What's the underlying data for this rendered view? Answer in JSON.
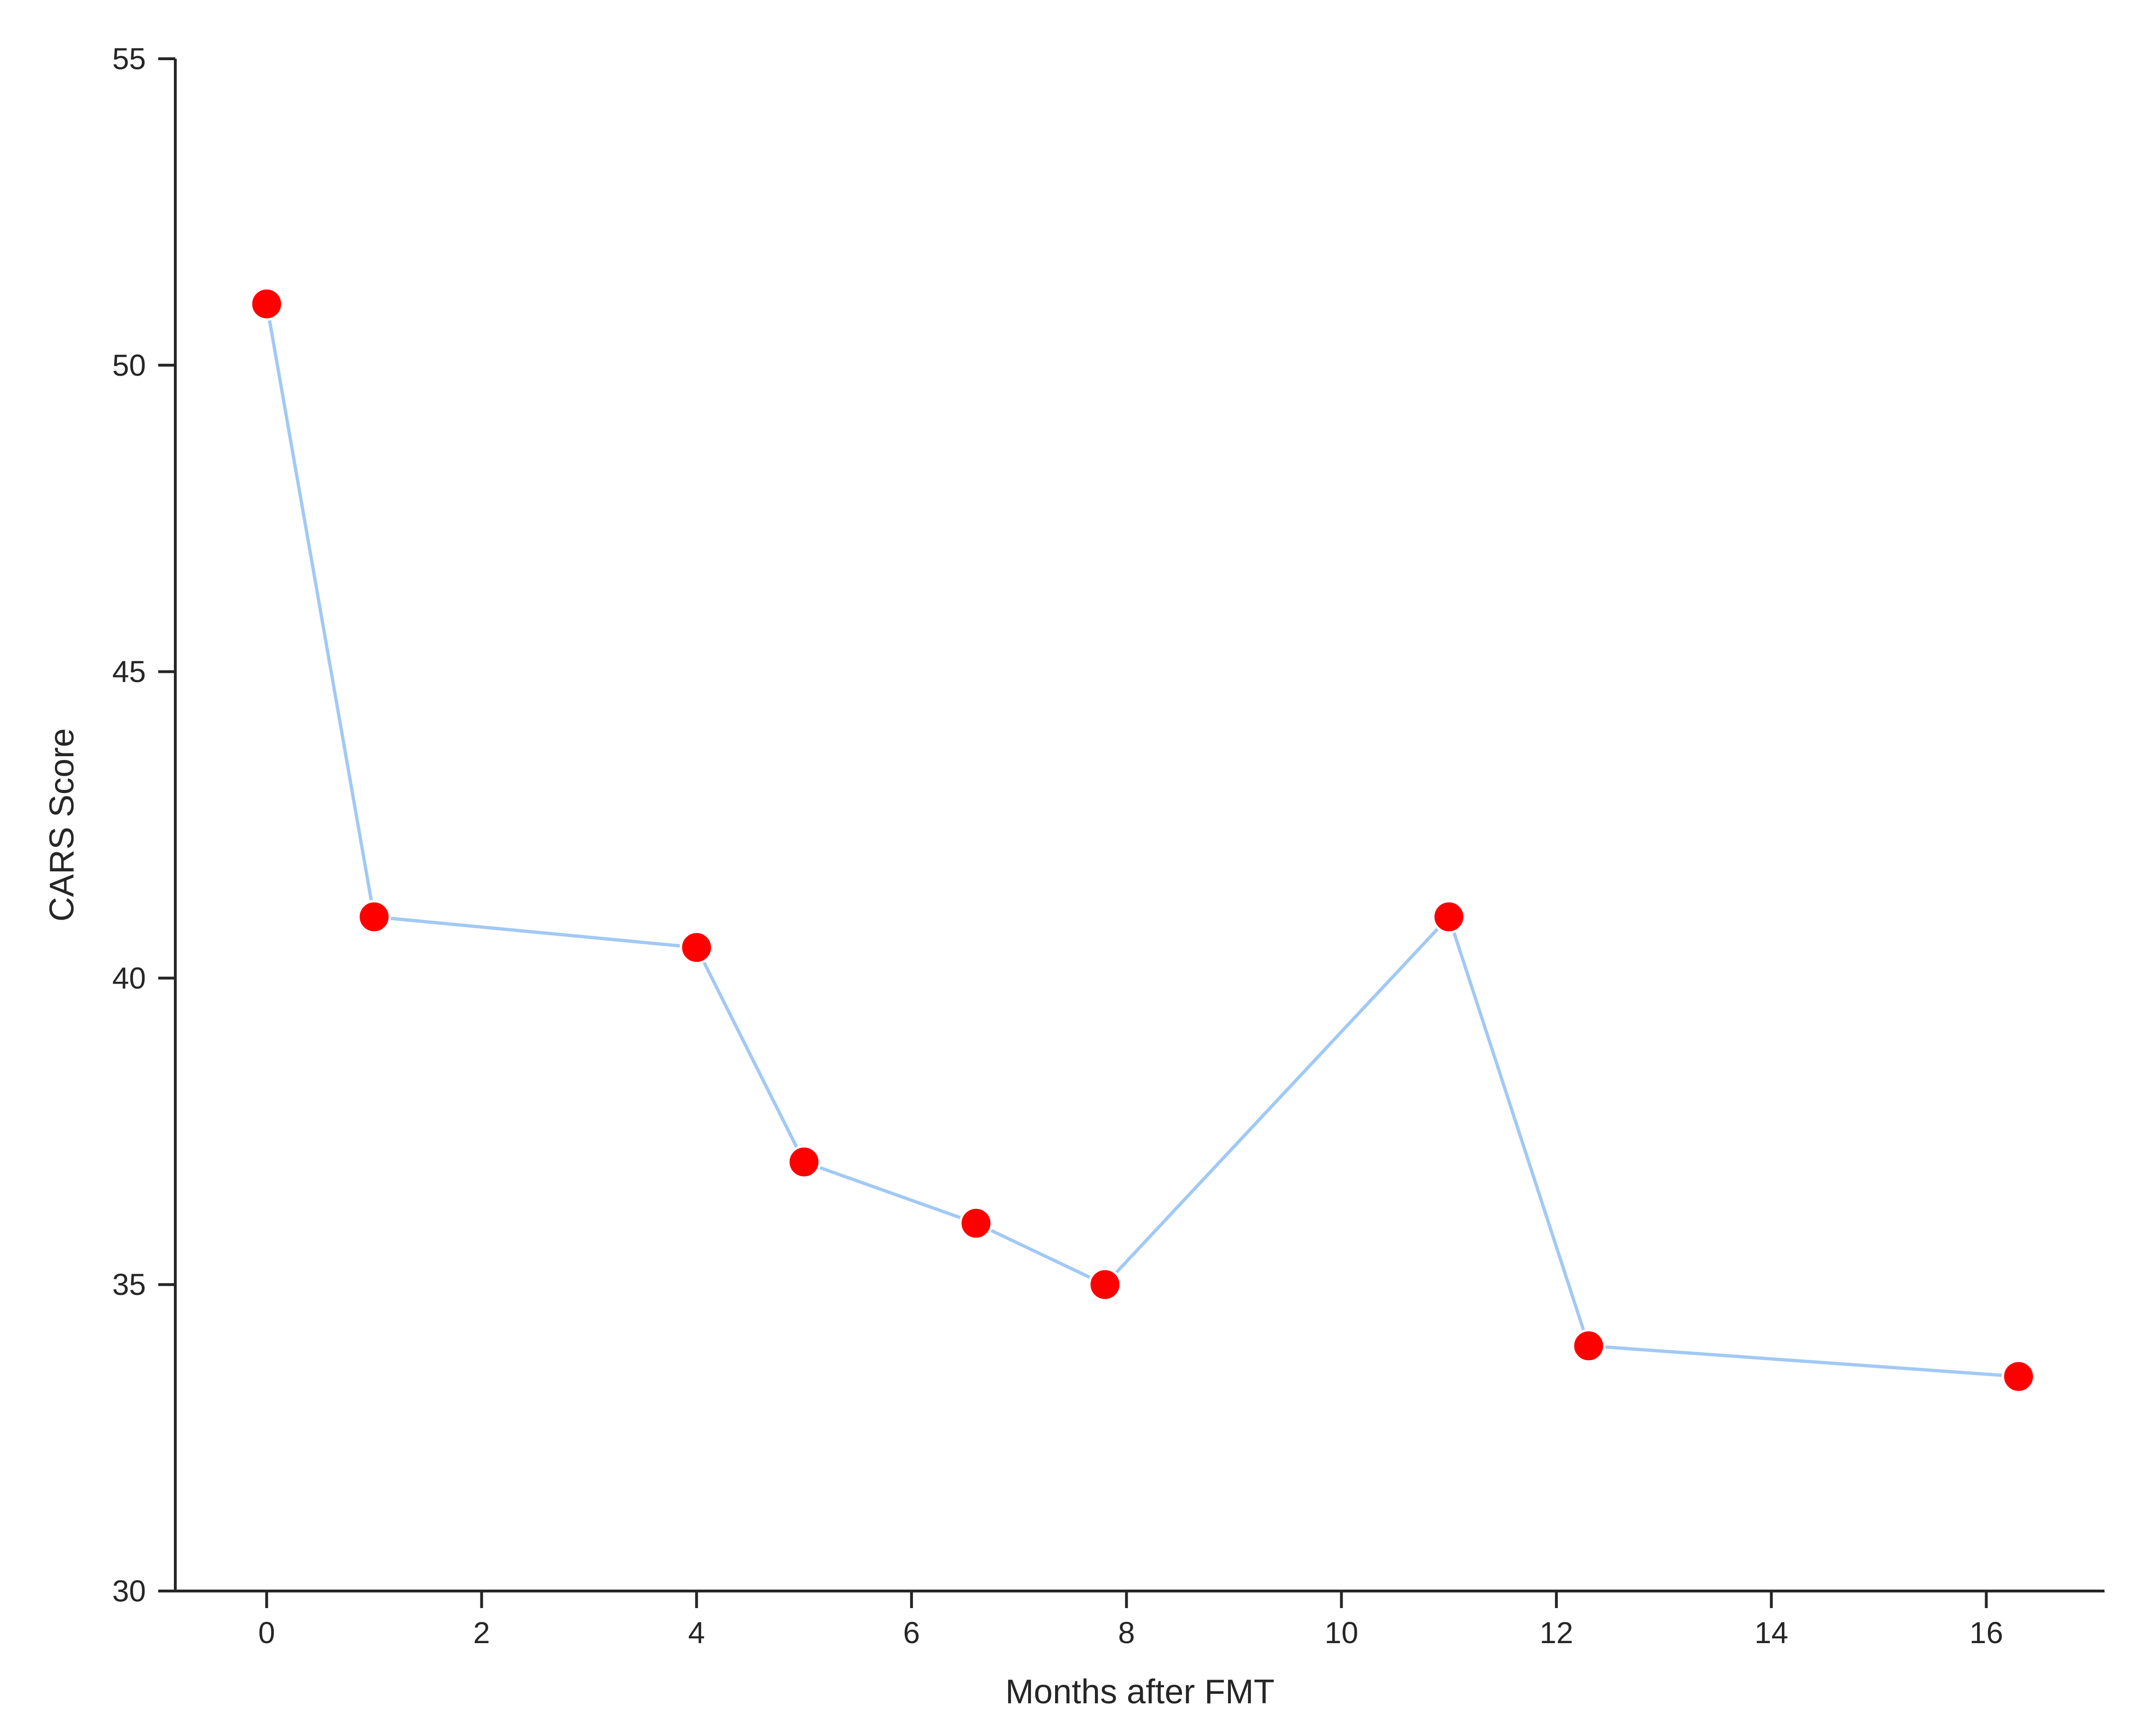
{
  "chart_data": {
    "type": "line",
    "title": "",
    "xlabel": "Months after FMT",
    "ylabel": "CARS Score",
    "xlim": [
      -0.85,
      17.1
    ],
    "ylim": [
      30,
      55
    ],
    "x_ticks": [
      0,
      2,
      4,
      6,
      8,
      10,
      12,
      14,
      16
    ],
    "x_tick_labels": [
      "0",
      "2",
      "4",
      "6",
      "8",
      "10",
      "12",
      "14",
      "16"
    ],
    "y_ticks": [
      30,
      35,
      40,
      45,
      50,
      55
    ],
    "y_tick_labels": [
      "30",
      "35",
      "40",
      "45",
      "50",
      "55"
    ],
    "grid": false,
    "legend": "none",
    "series": [
      {
        "x": [
          0,
          1,
          4,
          5,
          6.6,
          7.8,
          11,
          12.3,
          16.3
        ],
        "y": [
          51,
          41,
          40.5,
          37,
          36,
          35,
          41,
          34,
          33.5
        ],
        "line_color": "#a1c9f4",
        "marker_color": "#ff0000",
        "marker_edge_color": "#ffffff"
      }
    ]
  }
}
